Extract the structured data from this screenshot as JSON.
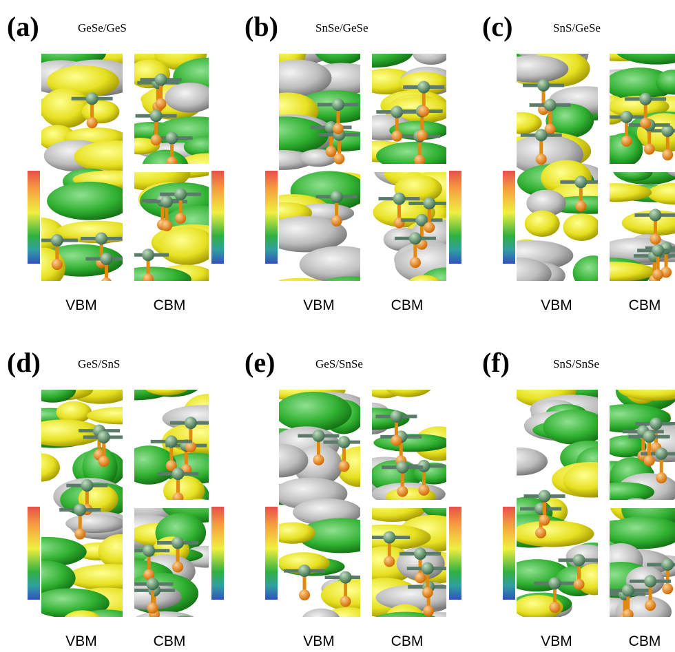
{
  "panels": [
    {
      "label": "(a)",
      "title": "GeSe/GeS",
      "vbm": "VBM",
      "cbm": "CBM"
    },
    {
      "label": "(b)",
      "title": "SnSe/GeSe",
      "vbm": "VBM",
      "cbm": "CBM"
    },
    {
      "label": "(c)",
      "title": "SnS/GeSe",
      "vbm": "VBM",
      "cbm": "CBM"
    },
    {
      "label": "(d)",
      "title": "GeS/SnS",
      "vbm": "VBM",
      "cbm": "CBM"
    },
    {
      "label": "(e)",
      "title": "GeS/SnSe",
      "vbm": "VBM",
      "cbm": "CBM"
    },
    {
      "label": "(f)",
      "title": "SnS/SnSe",
      "vbm": "VBM",
      "cbm": "CBM"
    }
  ]
}
